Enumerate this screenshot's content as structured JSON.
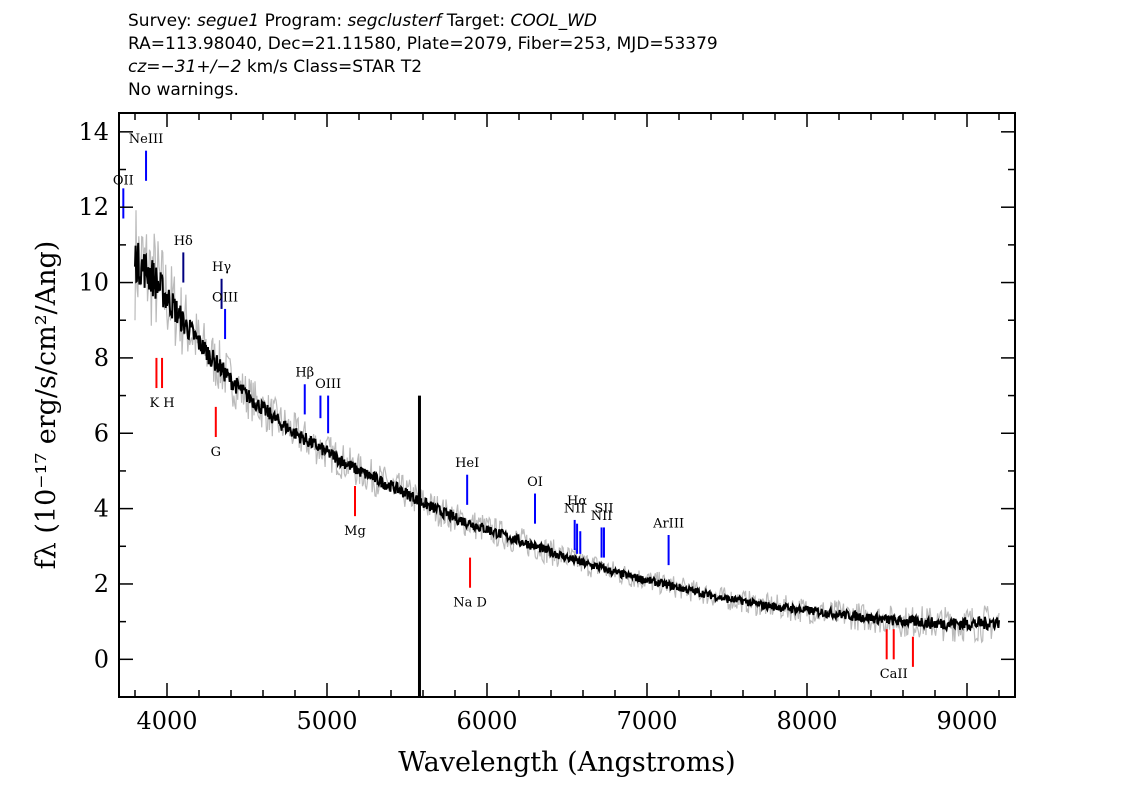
{
  "header": {
    "line1": {
      "survey_label": "Survey: ",
      "survey": "segue1",
      "program_label": " Program: ",
      "program": "segclusterf",
      "target_label": " Target: ",
      "target": "COOL_WD"
    },
    "line2": "RA=113.98040, Dec=21.11580, Plate=2079, Fiber=253, MJD=53379",
    "line3": {
      "cz": "cz=−31+/−2",
      "rest": " km/s Class=STAR T2"
    },
    "line4": "No warnings."
  },
  "chart_data": {
    "type": "line",
    "title": "",
    "xlabel": "Wavelength (Angstroms)",
    "ylabel": "fλ (10⁻¹⁷ erg/s/cm²/Ang)",
    "xlim": [
      3700,
      9300
    ],
    "ylim": [
      -1,
      14.5
    ],
    "x_ticks": [
      4000,
      5000,
      6000,
      7000,
      8000,
      9000
    ],
    "y_ticks": [
      0,
      2,
      4,
      6,
      8,
      10,
      12,
      14
    ],
    "x_minor_step": 200,
    "y_minor_step": 1,
    "series": [
      {
        "role": "flux",
        "color": "#000000",
        "x": [
          3800,
          3850,
          3900,
          3950,
          4000,
          4050,
          4100,
          4150,
          4200,
          4300,
          4400,
          4500,
          4600,
          4700,
          4800,
          4900,
          5000,
          5100,
          5200,
          5300,
          5400,
          5500,
          5580,
          5650,
          5700,
          5800,
          5900,
          6000,
          6100,
          6200,
          6300,
          6400,
          6500,
          6600,
          6700,
          6800,
          6900,
          7000,
          7100,
          7200,
          7300,
          7400,
          7500,
          7600,
          7700,
          7800,
          7900,
          8000,
          8100,
          8200,
          8300,
          8400,
          8500,
          8600,
          8700,
          8800,
          8900,
          9000,
          9100,
          9200
        ],
        "y": [
          10.6,
          10.4,
          10.2,
          9.9,
          9.6,
          9.3,
          8.95,
          8.7,
          8.4,
          7.9,
          7.4,
          7.0,
          6.65,
          6.3,
          6.0,
          5.75,
          5.5,
          5.25,
          5.0,
          4.8,
          4.6,
          4.4,
          4.2,
          4.05,
          3.95,
          3.75,
          3.6,
          3.45,
          3.3,
          3.15,
          3.0,
          2.85,
          2.7,
          2.55,
          2.45,
          2.3,
          2.2,
          2.1,
          2.0,
          1.9,
          1.8,
          1.7,
          1.6,
          1.55,
          1.45,
          1.4,
          1.35,
          1.3,
          1.25,
          1.2,
          1.15,
          1.1,
          1.05,
          1.0,
          1.0,
          0.95,
          0.95,
          0.95,
          0.95,
          1.0
        ]
      },
      {
        "role": "uncertainty band",
        "color": "#bbbbbb",
        "x": [
          3800,
          3900,
          4000,
          4200,
          4500,
          5000,
          5500,
          6000,
          6500,
          7000,
          7500,
          8000,
          8500,
          9000,
          9200
        ],
        "y_half_width": [
          1.6,
          1.5,
          1.2,
          0.8,
          0.6,
          0.5,
          0.45,
          0.4,
          0.35,
          0.3,
          0.3,
          0.35,
          0.4,
          0.5,
          0.5
        ]
      }
    ],
    "spike": {
      "x": 5578,
      "y_top": 7.0,
      "y_bottom": -1.0,
      "color": "#000000"
    },
    "emission_lines": [
      {
        "label": "OII",
        "x": 3727,
        "y_low": 11.7,
        "y_high": 12.5,
        "label_y": 12.6,
        "color": "#0000ff"
      },
      {
        "label": "NeIII",
        "x": 3869,
        "y_low": 12.7,
        "y_high": 13.5,
        "label_y": 13.7,
        "color": "#0000ff"
      },
      {
        "label": "Hδ",
        "x": 4102,
        "y_low": 10.0,
        "y_high": 10.8,
        "label_y": 11.0,
        "color": "#000080"
      },
      {
        "label": "Hγ",
        "x": 4341,
        "y_low": 9.3,
        "y_high": 10.1,
        "label_y": 10.3,
        "color": "#000080"
      },
      {
        "label": "OIII",
        "x": 4363,
        "y_low": 8.5,
        "y_high": 9.3,
        "label_y": 9.5,
        "color": "#0000ff"
      },
      {
        "label": "Hβ",
        "x": 4861,
        "y_low": 6.5,
        "y_high": 7.3,
        "label_y": 7.5,
        "color": "#0000ff"
      },
      {
        "label": "",
        "x": 4959,
        "y_low": 6.4,
        "y_high": 7.0,
        "label_y": 7.1,
        "color": "#0000ff"
      },
      {
        "label": "OIII",
        "x": 5007,
        "y_low": 6.0,
        "y_high": 7.0,
        "label_y": 7.2,
        "color": "#0000ff"
      },
      {
        "label": "HeI",
        "x": 5876,
        "y_low": 4.1,
        "y_high": 4.9,
        "label_y": 5.1,
        "color": "#0000ff"
      },
      {
        "label": "OI",
        "x": 6300,
        "y_low": 3.6,
        "y_high": 4.4,
        "label_y": 4.6,
        "color": "#0000ff"
      },
      {
        "label": "NII",
        "x": 6548,
        "y_low": 2.9,
        "y_high": 3.7,
        "label_y": 3.9,
        "color": "#0000ff"
      },
      {
        "label": "Hα",
        "x": 6563,
        "y_low": 2.8,
        "y_high": 3.6,
        "label_y": 4.1,
        "color": "#0000ff"
      },
      {
        "label": "",
        "x": 6583,
        "y_low": 2.8,
        "y_high": 3.4,
        "label_y": 3.5,
        "color": "#0000ff"
      },
      {
        "label": "NII",
        "x": 6716,
        "y_low": 2.7,
        "y_high": 3.5,
        "label_y": 3.7,
        "color": "#0000ff"
      },
      {
        "label": "SII",
        "x": 6731,
        "y_low": 2.7,
        "y_high": 3.5,
        "label_y": 3.9,
        "color": "#0000ff"
      },
      {
        "label": "ArIII",
        "x": 7135,
        "y_low": 2.5,
        "y_high": 3.3,
        "label_y": 3.5,
        "color": "#0000ff"
      }
    ],
    "absorption_lines": [
      {
        "label": "",
        "x": 3934,
        "y_low": 7.2,
        "y_high": 8.0,
        "color": "#ff0000"
      },
      {
        "label": "K H",
        "x": 3969,
        "y_low": 7.2,
        "y_high": 8.0,
        "label_y": 6.7,
        "color": "#ff0000"
      },
      {
        "label": "G",
        "x": 4305,
        "y_low": 5.9,
        "y_high": 6.7,
        "label_y": 5.4,
        "color": "#ff0000"
      },
      {
        "label": "Mg",
        "x": 5175,
        "y_low": 3.8,
        "y_high": 4.6,
        "label_y": 3.3,
        "color": "#ff0000"
      },
      {
        "label": "Na D",
        "x": 5894,
        "y_low": 1.9,
        "y_high": 2.7,
        "label_y": 1.4,
        "color": "#ff0000"
      },
      {
        "label": "",
        "x": 8498,
        "y_low": 0.0,
        "y_high": 0.8,
        "color": "#ff0000"
      },
      {
        "label": "CaII",
        "x": 8542,
        "y_low": 0.0,
        "y_high": 0.8,
        "label_y": -0.5,
        "color": "#ff0000"
      },
      {
        "label": "",
        "x": 8662,
        "y_low": -0.2,
        "y_high": 0.6,
        "color": "#ff0000"
      }
    ]
  }
}
